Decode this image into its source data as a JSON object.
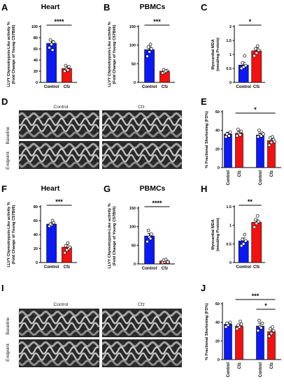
{
  "figure": {
    "panel_labels": [
      "A",
      "B",
      "C",
      "D",
      "E",
      "F",
      "G",
      "H",
      "I",
      "J"
    ],
    "echo_top": {
      "columns": [
        "Control",
        "Cfz"
      ],
      "rows": [
        "Baseline",
        "Endpoint"
      ]
    },
    "echo_bottom": {
      "columns": [
        "Control",
        "Cfz"
      ],
      "rows": [
        "Baseline",
        "Endpoint"
      ]
    }
  },
  "colors": {
    "control": "#0b19f5",
    "cfz": "#f51010",
    "axis": "#000000"
  },
  "chart_data": [
    {
      "panel": "A",
      "type": "bar",
      "title": "Heart",
      "ylabel_lines": [
        "LLVY Chymotrypsin-Like activity %",
        "(Fold Change of Young C57Bl/6)"
      ],
      "categories": [
        "Control",
        "Cfz"
      ],
      "values": [
        70,
        25
      ],
      "errors": [
        5,
        3
      ],
      "points": [
        [
          62,
          68,
          72,
          76,
          58
        ],
        [
          20,
          24,
          28,
          30,
          22
        ]
      ],
      "ylim": [
        0,
        100
      ],
      "yticks": [
        0,
        20,
        40,
        60,
        80,
        100
      ],
      "significance": [
        {
          "pair": [
            0,
            1
          ],
          "label": "****"
        }
      ]
    },
    {
      "panel": "B",
      "type": "bar",
      "title": "PBMCs",
      "ylabel_lines": [
        "LLVY Chymotrypsin-Like activity %",
        "(Fold Change of Young C57Bl/6)"
      ],
      "categories": [
        "Control",
        "Cfz"
      ],
      "values": [
        88,
        30
      ],
      "errors": [
        7,
        3
      ],
      "points": [
        [
          70,
          82,
          90,
          95,
          102
        ],
        [
          25,
          28,
          32,
          34,
          30
        ]
      ],
      "ylim": [
        0,
        150
      ],
      "yticks": [
        0,
        50,
        100,
        150
      ],
      "significance": [
        {
          "pair": [
            0,
            1
          ],
          "label": "***"
        }
      ]
    },
    {
      "panel": "C",
      "type": "bar",
      "title": "",
      "ylabel_lines": [
        "Myocardial MDA",
        "(nmol/mg Protein)"
      ],
      "categories": [
        "Control",
        "Cfz"
      ],
      "values": [
        0.62,
        1.13
      ],
      "errors": [
        0.1,
        0.1
      ],
      "points": [
        [
          0.5,
          0.55,
          0.6,
          0.7,
          0.95
        ],
        [
          0.95,
          1.05,
          1.15,
          1.2,
          1.3
        ]
      ],
      "ylim": [
        0,
        2.0
      ],
      "yticks": [
        0,
        0.5,
        1.0,
        1.5,
        2.0
      ],
      "significance": [
        {
          "pair": [
            0,
            1
          ],
          "label": "*"
        }
      ]
    },
    {
      "panel": "E",
      "type": "bar",
      "title": "",
      "ylabel_lines": [
        "% Fractional Shortening (FS%)"
      ],
      "groups": 2,
      "categories": [
        "Control",
        "Cfz",
        "Control",
        "Cfz"
      ],
      "values": [
        36,
        37,
        35,
        29
      ],
      "errors": [
        2,
        2,
        2,
        2
      ],
      "points": [
        [
          33,
          35,
          38,
          36,
          34
        ],
        [
          34,
          36,
          39,
          41,
          35
        ],
        [
          33,
          35,
          37,
          40,
          34,
          36
        ],
        [
          24,
          27,
          30,
          32,
          33,
          28
        ]
      ],
      "ylim": [
        0,
        60
      ],
      "yticks": [
        0,
        20,
        40,
        60
      ],
      "significance": [
        {
          "pair": [
            1,
            3
          ],
          "label": "*"
        }
      ]
    },
    {
      "panel": "F",
      "type": "bar",
      "title": "Heart",
      "ylabel_lines": [
        "LLVY Chymotrypsin-Like activity %",
        "(Fold Change of Young C57Bl/6)"
      ],
      "categories": [
        "Control",
        "Cfz"
      ],
      "values": [
        55,
        22
      ],
      "errors": [
        2,
        3
      ],
      "points": [
        [
          52,
          54,
          57,
          55,
          60
        ],
        [
          14,
          18,
          20,
          24,
          28,
          22
        ]
      ],
      "ylim": [
        0,
        80
      ],
      "yticks": [
        0,
        20,
        40,
        60,
        80
      ],
      "significance": [
        {
          "pair": [
            0,
            1
          ],
          "label": "***"
        }
      ]
    },
    {
      "panel": "G",
      "type": "bar",
      "title": "PBMCs",
      "ylabel_lines": [
        "LLVY Chymotrypsin-Like activity %",
        "(Fold Change of Young C57Bl/6)"
      ],
      "categories": [
        "Control",
        "Cfz"
      ],
      "values": [
        75,
        8
      ],
      "errors": [
        7,
        2
      ],
      "points": [
        [
          60,
          72,
          80,
          90,
          68
        ],
        [
          4,
          6,
          8,
          10,
          12,
          5
        ]
      ],
      "ylim": [
        0,
        150
      ],
      "yticks": [
        0,
        50,
        100,
        150
      ],
      "significance": [
        {
          "pair": [
            0,
            1
          ],
          "label": "****"
        }
      ]
    },
    {
      "panel": "H",
      "type": "bar",
      "title": "",
      "ylabel_lines": [
        "Myocardial MDA",
        "(nmol/mg Protein)"
      ],
      "categories": [
        "Control",
        "Cfz"
      ],
      "values": [
        0.58,
        1.08
      ],
      "errors": [
        0.08,
        0.08
      ],
      "points": [
        [
          0.45,
          0.5,
          0.58,
          0.62,
          0.75
        ],
        [
          0.95,
          1.05,
          1.1,
          1.15,
          1.25
        ]
      ],
      "ylim": [
        0,
        1.5
      ],
      "yticks": [
        0,
        0.5,
        1.0,
        1.5
      ],
      "significance": [
        {
          "pair": [
            0,
            1
          ],
          "label": "**"
        }
      ]
    },
    {
      "panel": "J",
      "type": "bar",
      "title": "",
      "ylabel_lines": [
        "% Fractional Shortening (FS%)"
      ],
      "groups": 2,
      "categories": [
        "Control",
        "Cfz",
        "Control",
        "Cfz"
      ],
      "values": [
        38,
        36,
        36,
        30
      ],
      "errors": [
        2,
        2,
        3,
        2
      ],
      "points": [
        [
          35,
          37,
          40,
          39
        ],
        [
          33,
          35,
          38,
          37,
          41
        ],
        [
          31,
          35,
          39,
          42,
          34
        ],
        [
          25,
          28,
          31,
          33,
          35
        ]
      ],
      "ylim": [
        0,
        60
      ],
      "yticks": [
        0,
        20,
        40,
        60
      ],
      "significance": [
        {
          "pair": [
            1,
            3
          ],
          "label": "***"
        },
        {
          "pair": [
            2,
            3
          ],
          "label": "*"
        }
      ]
    }
  ]
}
